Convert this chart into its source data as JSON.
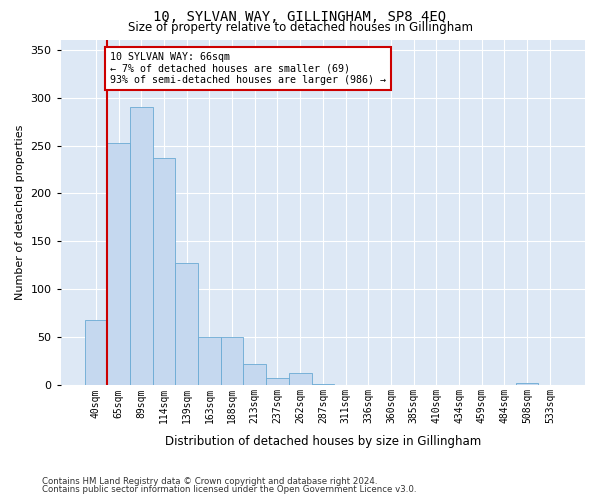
{
  "title": "10, SYLVAN WAY, GILLINGHAM, SP8 4EQ",
  "subtitle": "Size of property relative to detached houses in Gillingham",
  "xlabel": "Distribution of detached houses by size in Gillingham",
  "ylabel": "Number of detached properties",
  "bar_categories": [
    "40sqm",
    "65sqm",
    "89sqm",
    "114sqm",
    "139sqm",
    "163sqm",
    "188sqm",
    "213sqm",
    "237sqm",
    "262sqm",
    "287sqm",
    "311sqm",
    "336sqm",
    "360sqm",
    "385sqm",
    "410sqm",
    "434sqm",
    "459sqm",
    "484sqm",
    "508sqm",
    "533sqm"
  ],
  "bar_values": [
    68,
    253,
    290,
    237,
    128,
    50,
    50,
    22,
    8,
    13,
    1,
    0,
    0,
    0,
    0,
    0,
    0,
    0,
    0,
    2,
    0
  ],
  "bar_color": "#c5d8ef",
  "bar_edge_color": "#6aaad4",
  "bg_color": "#dde8f5",
  "grid_color": "#ffffff",
  "red_line_x": 1,
  "annotation_text": "10 SYLVAN WAY: 66sqm\n← 7% of detached houses are smaller (69)\n93% of semi-detached houses are larger (986) →",
  "annotation_box_color": "#ffffff",
  "annotation_box_edge": "#cc0000",
  "footnote1": "Contains HM Land Registry data © Crown copyright and database right 2024.",
  "footnote2": "Contains public sector information licensed under the Open Government Licence v3.0.",
  "ylim": [
    0,
    360
  ],
  "yticks": [
    0,
    50,
    100,
    150,
    200,
    250,
    300,
    350
  ]
}
